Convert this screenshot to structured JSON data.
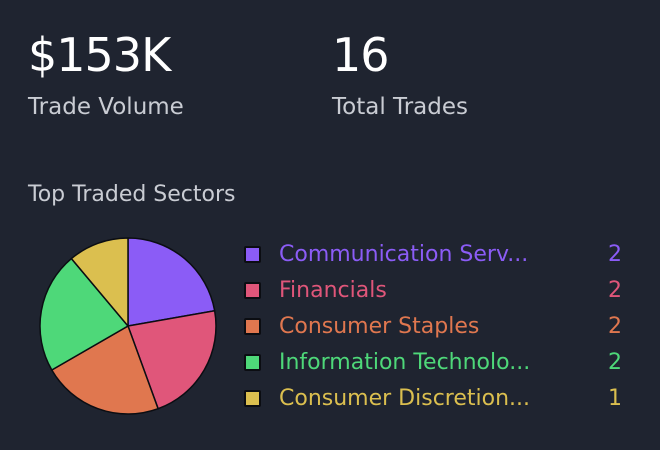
{
  "stats": {
    "volume": {
      "value": "$153K",
      "label": "Trade Volume"
    },
    "trades": {
      "value": "16",
      "label": "Total Trades"
    }
  },
  "sectors": {
    "title": "Top Traded Sectors",
    "items": [
      {
        "label": "Communication Serv...",
        "count": "2",
        "color": "#8b5cf6"
      },
      {
        "label": "Financials",
        "count": "2",
        "color": "#e0567a"
      },
      {
        "label": "Consumer Staples",
        "count": "2",
        "color": "#e0774f"
      },
      {
        "label": "Information Technolo...",
        "count": "2",
        "color": "#4ed879"
      },
      {
        "label": "Consumer Discretion...",
        "count": "1",
        "color": "#dbbf4f"
      }
    ]
  },
  "chart_data": {
    "type": "pie",
    "categories": [
      "Communication Serv...",
      "Financials",
      "Consumer Staples",
      "Information Technolo...",
      "Consumer Discretion..."
    ],
    "values": [
      2,
      2,
      2,
      2,
      1
    ],
    "colors": [
      "#8b5cf6",
      "#e0567a",
      "#e0774f",
      "#4ed879",
      "#dbbf4f"
    ]
  }
}
